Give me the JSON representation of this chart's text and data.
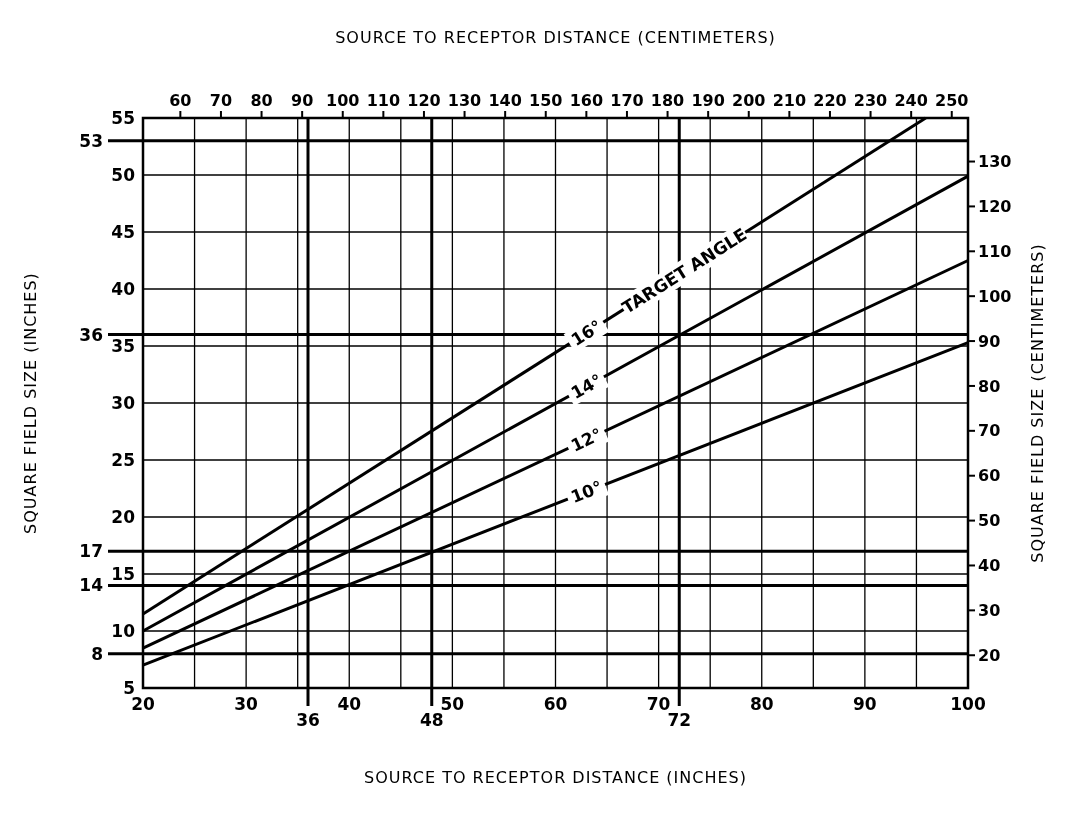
{
  "chart_data": {
    "type": "line",
    "xlabel": "SOURCE TO RECEPTOR DISTANCE (INCHES)",
    "x2label": "SOURCE TO RECEPTOR DISTANCE (CENTIMETERS)",
    "ylabel": "SQUARE FIELD SIZE (INCHES)",
    "y2label": "SQUARE FIELD SIZE (CENTIMETERS)",
    "xlim": [
      20,
      100
    ],
    "xticks": [
      20,
      {
        "value": 25,
        "label": null
      },
      30,
      {
        "value": 35,
        "label": null
      },
      40,
      {
        "value": 45,
        "label": null
      },
      50,
      {
        "value": 55,
        "label": null
      },
      60,
      {
        "value": 65,
        "label": null
      },
      70,
      {
        "value": 75,
        "label": null
      },
      80,
      {
        "value": 85,
        "label": null
      },
      90,
      {
        "value": 95,
        "label": null
      },
      100
    ],
    "x2lim": [
      50.8,
      254
    ],
    "x2ticks": [
      60,
      70,
      80,
      90,
      100,
      110,
      120,
      130,
      140,
      150,
      160,
      170,
      180,
      190,
      200,
      210,
      220,
      230,
      240,
      250
    ],
    "ylim": [
      5,
      55
    ],
    "yticks": [
      5,
      10,
      15,
      20,
      25,
      30,
      35,
      40,
      45,
      50,
      55
    ],
    "y2lim": [
      12.7,
      139.7
    ],
    "y2ticks": [
      20,
      30,
      40,
      50,
      60,
      70,
      80,
      90,
      100,
      110,
      120,
      130
    ],
    "grid": true,
    "marker": "none",
    "line_style": "solid",
    "series": [
      {
        "name": "16°",
        "color": "#000000",
        "x": [
          20,
          95.9
        ],
        "values": [
          11.5,
          55
        ]
      },
      {
        "name": "14°",
        "color": "#000000",
        "x": [
          20,
          100
        ],
        "values": [
          10,
          49.9
        ]
      },
      {
        "name": "12°",
        "color": "#000000",
        "x": [
          20,
          100
        ],
        "values": [
          8.5,
          42.5
        ]
      },
      {
        "name": "10°",
        "color": "#000000",
        "x": [
          20,
          100
        ],
        "values": [
          7,
          35.3
        ]
      }
    ],
    "annotations": [
      "TARGET ANGLE"
    ],
    "ref_lines": [
      {
        "axis": "y",
        "value": 53,
        "label": "53"
      },
      {
        "axis": "y",
        "value": 36,
        "label": "36"
      },
      {
        "axis": "y",
        "value": 17,
        "label": "17"
      },
      {
        "axis": "y",
        "value": 14,
        "label": "14"
      },
      {
        "axis": "y",
        "value": 8,
        "label": "8"
      },
      {
        "axis": "x",
        "value": 36,
        "label": "36"
      },
      {
        "axis": "x",
        "value": 48,
        "label": "48"
      },
      {
        "axis": "x",
        "value": 72,
        "label": "72"
      }
    ]
  }
}
